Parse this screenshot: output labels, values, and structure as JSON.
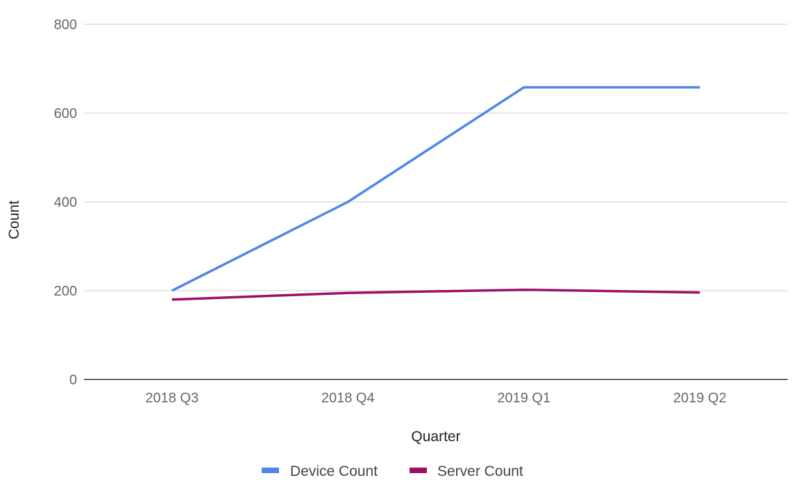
{
  "chart_data": {
    "type": "line",
    "categories": [
      "2018 Q3",
      "2018 Q4",
      "2019 Q1",
      "2019 Q2"
    ],
    "series": [
      {
        "name": "Device Count",
        "values": [
          200,
          400,
          658,
          658
        ],
        "color": "#4f86e8"
      },
      {
        "name": "Server Count",
        "values": [
          180,
          195,
          202,
          196
        ],
        "color": "#9c0f66"
      }
    ],
    "title": "",
    "xlabel": "Quarter",
    "ylabel": "Count",
    "ylim": [
      0,
      800
    ],
    "yticks": [
      "0",
      "200",
      "400",
      "600",
      "800"
    ],
    "grid": true,
    "legend": "bottom"
  }
}
